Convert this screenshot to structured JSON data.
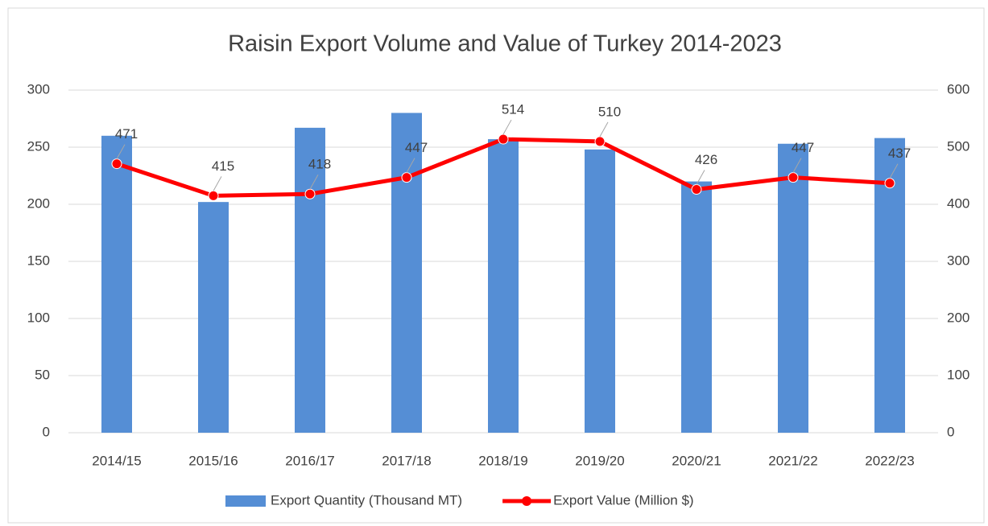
{
  "chart_data": {
    "type": "bar-line",
    "title": "Raisin Export Volume and Value of Turkey 2014-2023",
    "categories": [
      "2014/15",
      "2015/16",
      "2016/17",
      "2017/18",
      "2018/19",
      "2019/20",
      "2020/21",
      "2021/22",
      "2022/23"
    ],
    "series": [
      {
        "name": "Export Quantity (Thousand MT)",
        "type": "bar",
        "color": "#558ed5",
        "axis": "y",
        "values": [
          260,
          202,
          267,
          280,
          257,
          248,
          220,
          253,
          258
        ]
      },
      {
        "name": "Export Value (Million $)",
        "type": "line",
        "color": "#ff0000",
        "axis": "y2",
        "values": [
          471,
          415,
          418,
          447,
          514,
          510,
          426,
          447,
          437
        ]
      }
    ],
    "ylim": [
      0,
      300
    ],
    "yticks": [
      0,
      50,
      100,
      150,
      200,
      250,
      300
    ],
    "y2lim": [
      0,
      600
    ],
    "y2ticks": [
      0,
      100,
      200,
      300,
      400,
      500,
      600
    ],
    "grid": true,
    "legend": "bottom"
  }
}
